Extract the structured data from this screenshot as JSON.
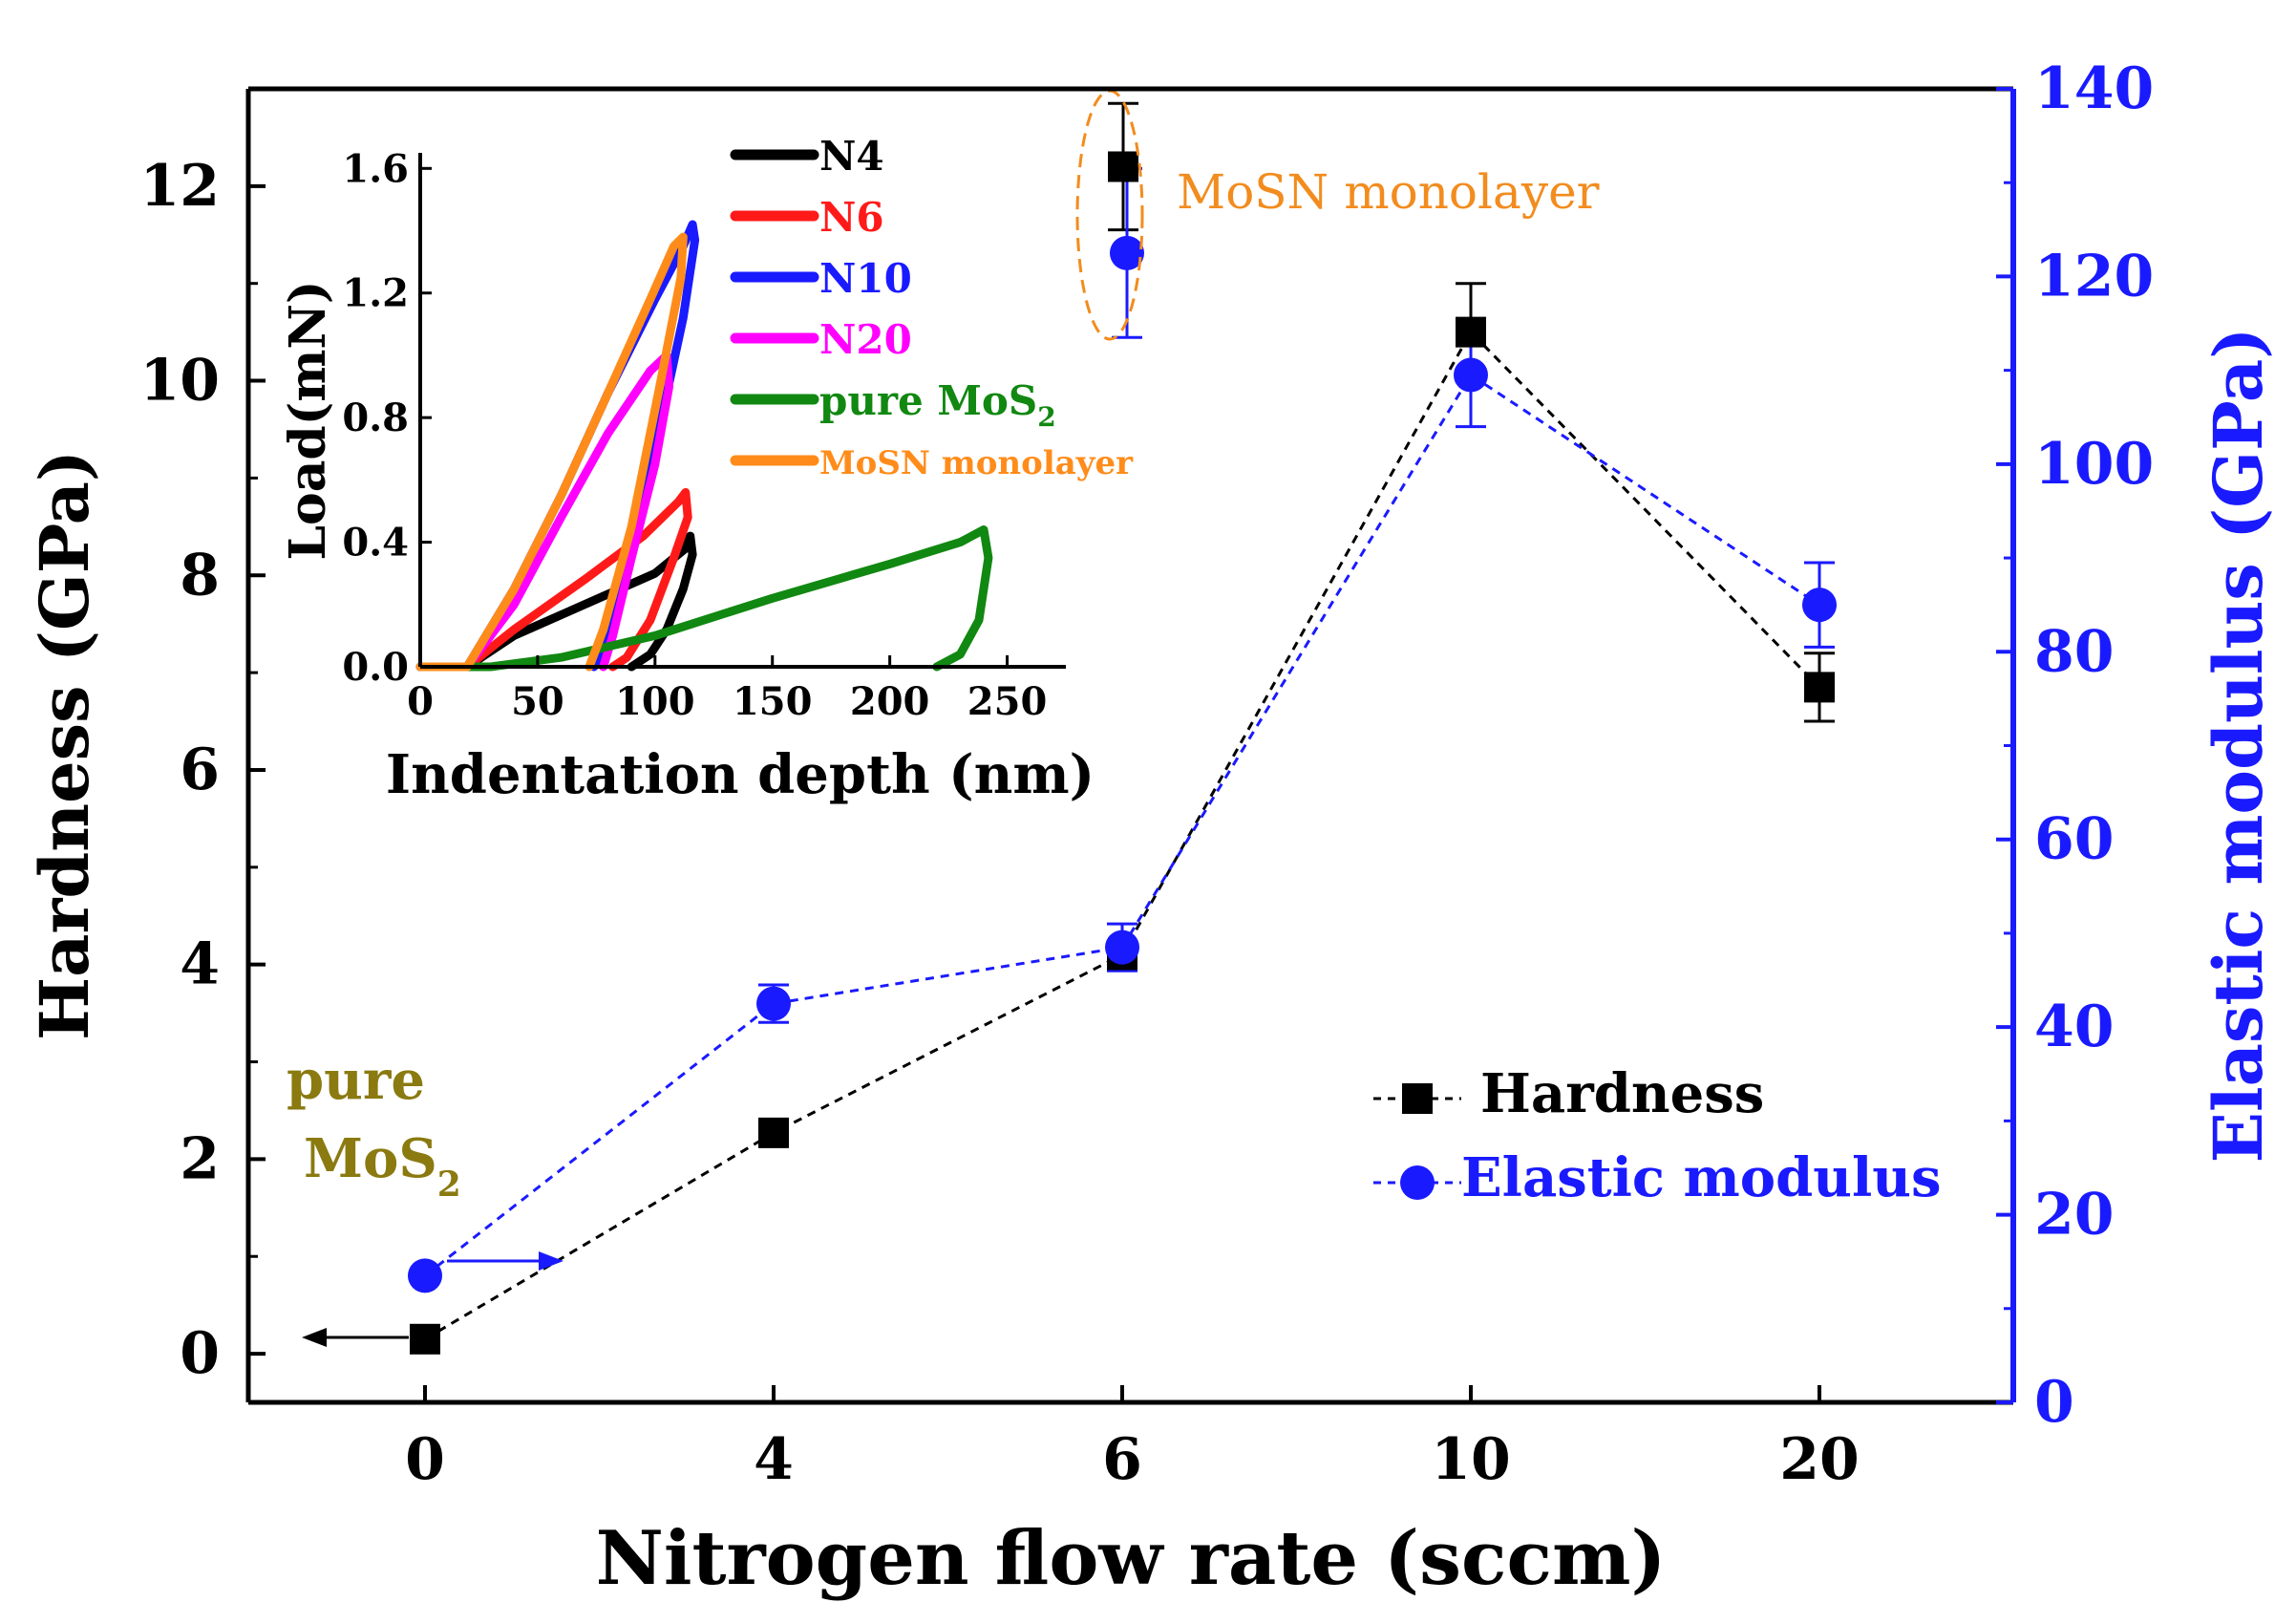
{
  "chart_data": [
    {
      "type": "scatter",
      "title": "",
      "xlabel": "Nitrogen flow rate (sccm)",
      "ylabel": "Hardness (GPa)",
      "y2label": "Elastic modulus (GPa)",
      "categories": [
        "0",
        "4",
        "6",
        "10",
        "20"
      ],
      "ylim": [
        -0.5,
        13
      ],
      "yticks": [
        0,
        2,
        4,
        6,
        8,
        10,
        12
      ],
      "y2lim": [
        0,
        140
      ],
      "y2ticks": [
        0,
        20,
        40,
        60,
        80,
        100,
        120,
        140
      ],
      "legend_position": "bottom-right",
      "series": [
        {
          "name": "Hardness",
          "axis": "left",
          "color": "#000000",
          "marker": "square",
          "values": [
            0.15,
            2.27,
            4.1,
            10.5,
            6.85
          ],
          "errors": [
            0,
            0,
            0.12,
            0.5,
            0.35
          ]
        },
        {
          "name": "Elastic modulus",
          "axis": "right",
          "color": "#1a1aff",
          "marker": "circle",
          "values": [
            13.5,
            42.5,
            48.5,
            109.5,
            85
          ],
          "errors": [
            0,
            2,
            2.5,
            5.5,
            4.5
          ]
        }
      ],
      "extra_points": [
        {
          "series": "Hardness",
          "x_position": 5.9,
          "value": 12.2,
          "error": 0.65
        },
        {
          "series": "Elastic modulus",
          "x_position": 5.9,
          "value": 122.5,
          "error": 9
        }
      ],
      "annotations": {
        "monolayer_label": "MoSN monolayer",
        "pure_label_line1": "pure",
        "pure_label_line2": "MoS",
        "pure_label_sub": "2"
      },
      "colors": {
        "hardness": "#000000",
        "modulus": "#1a1aff",
        "monolayer": "#f28c1e",
        "pure_label": "#8a7a10"
      }
    },
    {
      "type": "line",
      "title": "",
      "xlabel": "Indentation depth (nm)",
      "ylabel": "Load(mN)",
      "xlim": [
        0,
        275
      ],
      "xticks": [
        0,
        50,
        100,
        150,
        200,
        250
      ],
      "ylim": [
        0,
        1.65
      ],
      "yticks": [
        "0.0",
        "0.4",
        "0.8",
        "1.2",
        "1.6"
      ],
      "legend_position": "top-right",
      "series": [
        {
          "name": "N4",
          "color": "#000000",
          "points": [
            [
              0,
              0
            ],
            [
              20,
              0
            ],
            [
              40,
              0.1
            ],
            [
              70,
              0.2
            ],
            [
              100,
              0.3
            ],
            [
              113,
              0.38
            ],
            [
              115,
              0.42
            ],
            [
              116,
              0.36
            ],
            [
              112,
              0.25
            ],
            [
              105,
              0.12
            ],
            [
              98,
              0.04
            ],
            [
              90,
              0
            ]
          ]
        },
        {
          "name": "N6",
          "color": "#ff1a1a",
          "points": [
            [
              0,
              0
            ],
            [
              20,
              0
            ],
            [
              40,
              0.12
            ],
            [
              70,
              0.28
            ],
            [
              95,
              0.42
            ],
            [
              110,
              0.53
            ],
            [
              113,
              0.56
            ],
            [
              114,
              0.48
            ],
            [
              108,
              0.35
            ],
            [
              98,
              0.15
            ],
            [
              88,
              0.03
            ],
            [
              82,
              0
            ]
          ]
        },
        {
          "name": "N10",
          "color": "#1a1aff",
          "points": [
            [
              0,
              0
            ],
            [
              20,
              0
            ],
            [
              40,
              0.25
            ],
            [
              60,
              0.55
            ],
            [
              80,
              0.88
            ],
            [
              100,
              1.18
            ],
            [
              112,
              1.35
            ],
            [
              116,
              1.42
            ],
            [
              117,
              1.37
            ],
            [
              112,
              1.12
            ],
            [
              100,
              0.7
            ],
            [
              88,
              0.3
            ],
            [
              78,
              0.05
            ],
            [
              74,
              0
            ]
          ]
        },
        {
          "name": "N20",
          "color": "#ff00ff",
          "points": [
            [
              0,
              0
            ],
            [
              20,
              0
            ],
            [
              40,
              0.2
            ],
            [
              60,
              0.48
            ],
            [
              80,
              0.75
            ],
            [
              98,
              0.95
            ],
            [
              105,
              1.0
            ],
            [
              106,
              0.9
            ],
            [
              100,
              0.65
            ],
            [
              90,
              0.35
            ],
            [
              82,
              0.1
            ],
            [
              78,
              0
            ]
          ]
        },
        {
          "name": "pure MoS",
          "name_sub": "2",
          "color": "#118811",
          "points": [
            [
              0,
              0
            ],
            [
              30,
              0
            ],
            [
              60,
              0.03
            ],
            [
              100,
              0.1
            ],
            [
              150,
              0.22
            ],
            [
              200,
              0.33
            ],
            [
              230,
              0.4
            ],
            [
              240,
              0.44
            ],
            [
              242,
              0.35
            ],
            [
              238,
              0.15
            ],
            [
              230,
              0.04
            ],
            [
              220,
              0
            ]
          ]
        },
        {
          "name": "MoSN monolayer",
          "color": "#ff8c1a",
          "points": [
            [
              0,
              0
            ],
            [
              20,
              0
            ],
            [
              40,
              0.25
            ],
            [
              60,
              0.55
            ],
            [
              80,
              0.88
            ],
            [
              98,
              1.18
            ],
            [
              108,
              1.35
            ],
            [
              112,
              1.38
            ],
            [
              111,
              1.25
            ],
            [
              102,
              0.9
            ],
            [
              90,
              0.45
            ],
            [
              78,
              0.12
            ],
            [
              72,
              0
            ]
          ]
        }
      ]
    }
  ]
}
